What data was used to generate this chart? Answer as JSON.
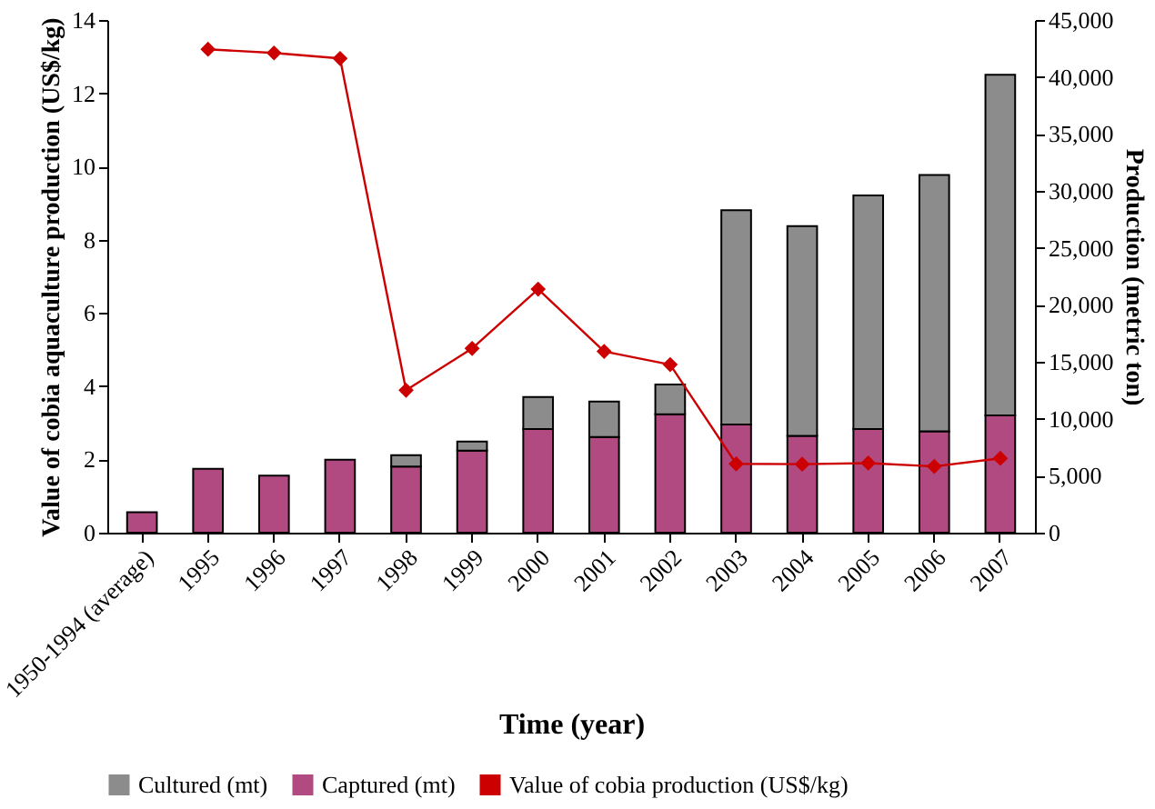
{
  "chart_data": {
    "type": "bar",
    "stacked": true,
    "xlabel": "Time (year)",
    "ylabel": "Value of cobia aquaculture production (US$/kg)",
    "y2label": "Production (metric ton)",
    "categories": [
      "1950-1994 (average)",
      "1995",
      "1996",
      "1997",
      "1998",
      "1999",
      "2000",
      "2001",
      "2002",
      "2003",
      "2004",
      "2005",
      "2006",
      "2007"
    ],
    "series": [
      {
        "name": "Captured (mt)",
        "type": "bar",
        "axis": "y2",
        "color": "#b04a80",
        "values": [
          1800,
          5600,
          5000,
          6400,
          5800,
          7200,
          9100,
          8400,
          10400,
          9500,
          8500,
          9100,
          8900,
          10300
        ]
      },
      {
        "name": "Cultured (mt)",
        "type": "bar",
        "axis": "y2",
        "color": "#8c8c8c",
        "values": [
          null,
          null,
          null,
          null,
          1000,
          800,
          2800,
          3100,
          2600,
          18800,
          18400,
          20500,
          22500,
          29900
        ]
      },
      {
        "name": "Value of cobia production (US$/kg)",
        "type": "line",
        "axis": "y",
        "color": "#cc0000",
        "values": [
          null,
          13.2,
          13.1,
          12.95,
          3.89,
          5.03,
          6.65,
          4.95,
          4.59,
          1.88,
          1.87,
          1.9,
          1.81,
          2.03
        ]
      }
    ],
    "ylim": [
      0,
      14
    ],
    "yticks": [
      0,
      2,
      4,
      6,
      8,
      10,
      12,
      14
    ],
    "y2lim": [
      0,
      45000
    ],
    "y2ticks": [
      0,
      {
        "value": 5000,
        "label": "5,000"
      },
      {
        "value": 10000,
        "label": "10,000"
      },
      {
        "value": 15000,
        "label": "15,000"
      },
      {
        "value": 20000,
        "label": "20,000"
      },
      {
        "value": 25000,
        "label": "25,000"
      },
      {
        "value": 30000,
        "label": "30,000"
      },
      {
        "value": 35000,
        "label": "35,000"
      },
      {
        "value": 40000,
        "label": "40,000"
      },
      {
        "value": 45000,
        "label": "45,000"
      }
    ],
    "grid": false,
    "legend": "bottom",
    "marker": "diamond",
    "line_style": "solid"
  }
}
